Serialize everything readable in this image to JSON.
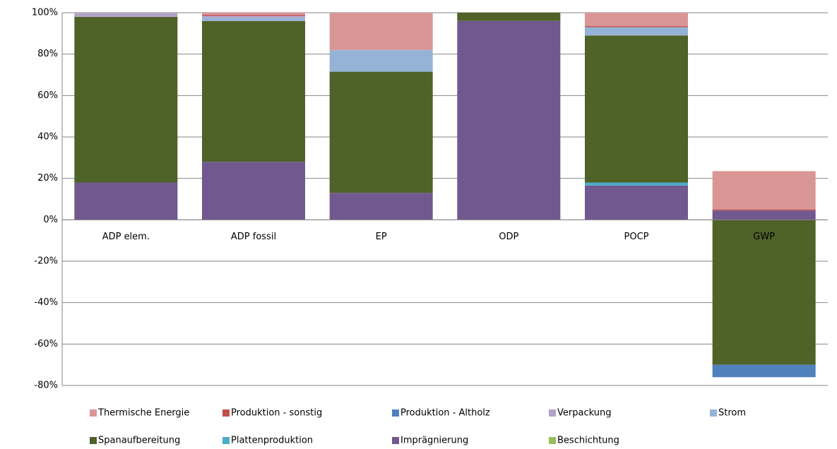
{
  "chart_data": {
    "type": "stacked-bar",
    "categories": [
      "ADP elem.",
      "ADP fossil",
      "EP",
      "ODP",
      "POCP",
      "GWP"
    ],
    "series": [
      {
        "name": "Thermische Energie",
        "color": "#d99694",
        "values": [
          0,
          1,
          18,
          0,
          6.5,
          18.5
        ]
      },
      {
        "name": "Produktion - sonstig",
        "color": "#c0504d",
        "values": [
          0,
          0.5,
          0,
          0,
          0.5,
          0.5
        ]
      },
      {
        "name": "Produktion - Altholz",
        "color": "#4f81bd",
        "values": [
          0,
          0,
          0,
          0,
          0,
          -6
        ]
      },
      {
        "name": "Verpackung",
        "color": "#b3a2c7",
        "values": [
          2,
          1,
          0,
          0,
          0,
          0
        ]
      },
      {
        "name": "Strom",
        "color": "#95b3d7",
        "values": [
          0,
          1.5,
          10.5,
          0,
          4,
          0
        ]
      },
      {
        "name": "Spanaufbereitung",
        "color": "#4f6228",
        "values": [
          80,
          68,
          58.5,
          4,
          71,
          -70
        ]
      },
      {
        "name": "Plattenproduktion",
        "color": "#4bacc6",
        "values": [
          0,
          0,
          0,
          0,
          1.5,
          0
        ]
      },
      {
        "name": "Imprägnierung",
        "color": "#71588f",
        "values": [
          18,
          28,
          13,
          96,
          16.5,
          4.5
        ]
      },
      {
        "name": "Beschichtung",
        "color": "#9bbb59",
        "values": [
          0,
          0,
          0,
          0,
          0,
          0
        ]
      }
    ],
    "ylim": [
      -80,
      100
    ],
    "yticks": [
      {
        "value": -80,
        "label": "-80%"
      },
      {
        "value": -60,
        "label": "-60%"
      },
      {
        "value": -40,
        "label": "-40%"
      },
      {
        "value": -20,
        "label": "-20%"
      },
      {
        "value": 0,
        "label": "0%"
      },
      {
        "value": 20,
        "label": "20%"
      },
      {
        "value": 40,
        "label": "40%"
      },
      {
        "value": 60,
        "label": "60%"
      },
      {
        "value": 80,
        "label": "80%"
      },
      {
        "value": 100,
        "label": "100%"
      }
    ],
    "grid": true
  }
}
